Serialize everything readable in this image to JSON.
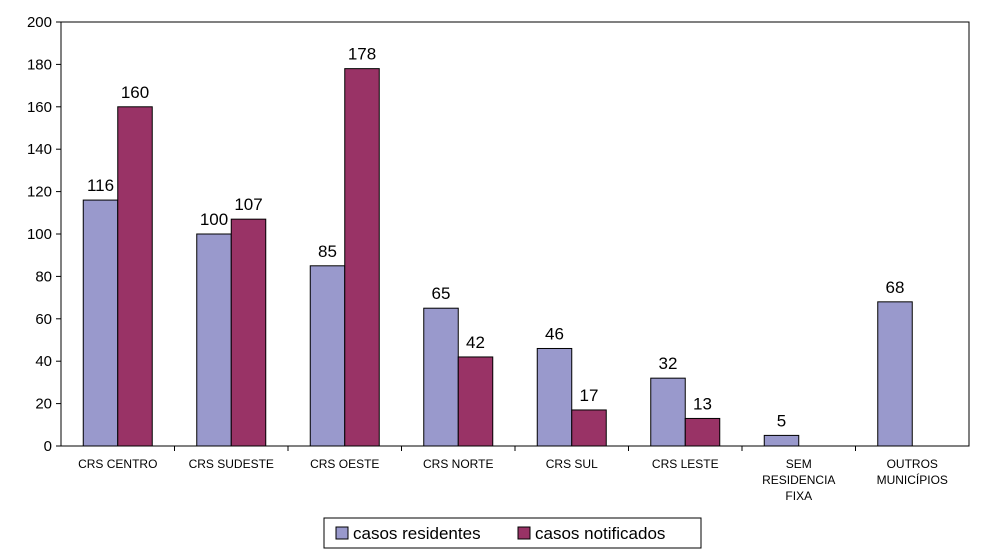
{
  "chart_data": {
    "type": "bar",
    "categories": [
      [
        "CRS CENTRO"
      ],
      [
        "CRS SUDESTE"
      ],
      [
        "CRS OESTE"
      ],
      [
        "CRS NORTE"
      ],
      [
        "CRS SUL"
      ],
      [
        "CRS LESTE"
      ],
      [
        "SEM",
        "RESIDENCIA",
        "FIXA"
      ],
      [
        "OUTROS",
        "MUNICÍPIOS"
      ]
    ],
    "series": [
      {
        "name": "casos residentes",
        "color": "#9999cc",
        "values": [
          116,
          100,
          85,
          65,
          46,
          32,
          5,
          68
        ]
      },
      {
        "name": "casos notificados",
        "color": "#993366",
        "values": [
          160,
          107,
          178,
          42,
          17,
          13,
          null,
          null
        ]
      }
    ],
    "ylim": [
      0,
      200
    ],
    "yticks": [
      0,
      20,
      40,
      60,
      80,
      100,
      120,
      140,
      160,
      180,
      200
    ],
    "grid": false,
    "legend_position": "bottom-center"
  }
}
